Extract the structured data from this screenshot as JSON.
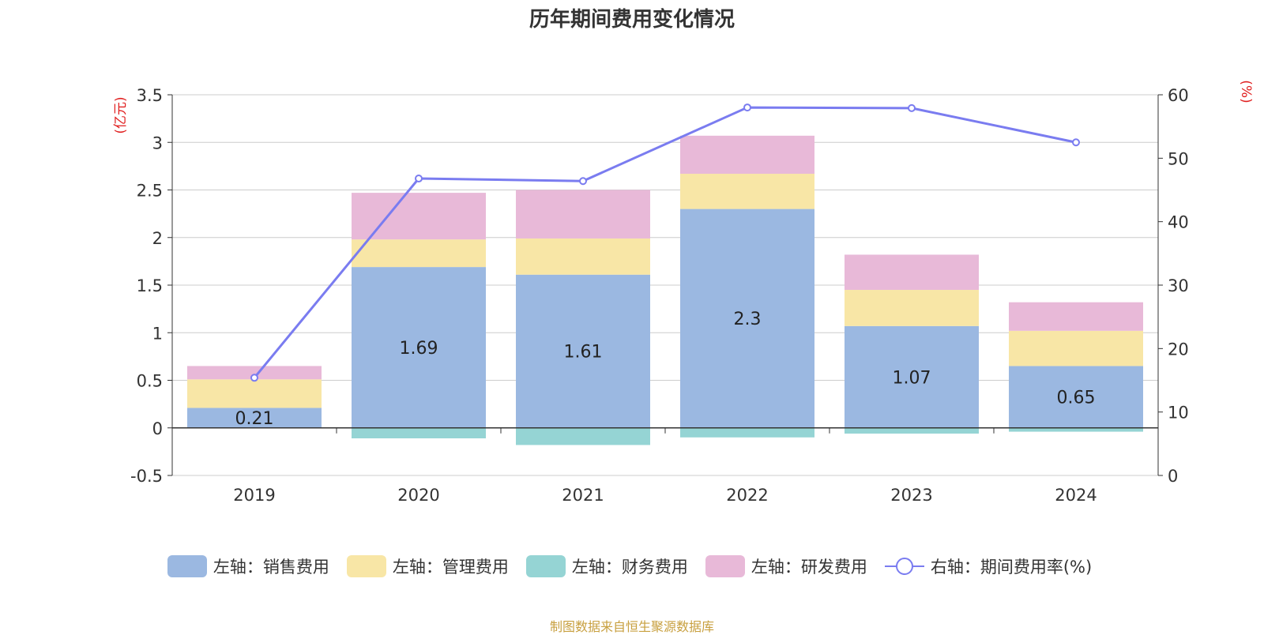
{
  "title": "历年期间费用变化情况",
  "source": "制图数据来自恒生聚源数据库",
  "colors": {
    "sales": "#9bb8e1",
    "admin": "#f8e6a6",
    "finance": "#95d4d4",
    "rd": "#e8b9d8",
    "rate": "#7a7cf0"
  },
  "legend": [
    {
      "key": "sales",
      "label": "左轴：销售费用",
      "kind": "bar"
    },
    {
      "key": "admin",
      "label": "左轴：管理费用",
      "kind": "bar"
    },
    {
      "key": "finance",
      "label": "左轴：财务费用",
      "kind": "bar"
    },
    {
      "key": "rd",
      "label": "左轴：研发费用",
      "kind": "bar"
    },
    {
      "key": "rate",
      "label": "右轴：期间费用率(%)",
      "kind": "line"
    }
  ],
  "chart_data": {
    "type": "bar",
    "title": "历年期间费用变化情况",
    "categories": [
      "2019",
      "2020",
      "2021",
      "2022",
      "2023",
      "2024"
    ],
    "y_left": {
      "unit": "(亿元)",
      "min": -0.5,
      "max": 3.5,
      "ticks": [
        "-0.5",
        "0",
        "0.5",
        "1",
        "1.5",
        "2",
        "2.5",
        "3",
        "3.5"
      ]
    },
    "y_right": {
      "unit": "(%)",
      "min": 0,
      "max": 60,
      "ticks": [
        "0",
        "10",
        "20",
        "30",
        "40",
        "50",
        "60"
      ]
    },
    "series": [
      {
        "key": "sales",
        "name": "左轴：销售费用",
        "axis": "left",
        "stack": true,
        "values": [
          0.21,
          1.69,
          1.61,
          2.3,
          1.07,
          0.65
        ],
        "labels": [
          "0.21",
          "1.69",
          "1.61",
          "2.3",
          "1.07",
          "0.65"
        ]
      },
      {
        "key": "admin",
        "name": "左轴：管理费用",
        "axis": "left",
        "stack": true,
        "values": [
          0.3,
          0.29,
          0.38,
          0.37,
          0.38,
          0.37
        ]
      },
      {
        "key": "finance",
        "name": "左轴：财务费用",
        "axis": "left",
        "stack": true,
        "values": [
          0.0,
          -0.11,
          -0.18,
          -0.1,
          -0.06,
          -0.04
        ]
      },
      {
        "key": "rd",
        "name": "左轴：研发费用",
        "axis": "left",
        "stack": true,
        "values": [
          0.14,
          0.49,
          0.51,
          0.4,
          0.37,
          0.3
        ]
      },
      {
        "key": "rate",
        "name": "右轴：期间费用率(%)",
        "axis": "right",
        "type": "line",
        "values": [
          15.4,
          46.8,
          46.4,
          58.0,
          57.9,
          52.5
        ]
      }
    ],
    "grid": true,
    "legend_position": "bottom"
  }
}
